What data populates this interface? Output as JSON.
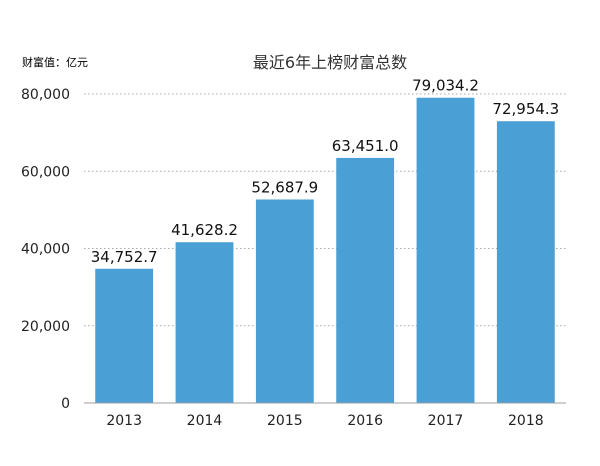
{
  "chart_data": {
    "type": "bar",
    "title": "最近6年上榜财富总数",
    "unit_label": "财富值：亿元",
    "categories": [
      "2013",
      "2014",
      "2015",
      "2016",
      "2017",
      "2018"
    ],
    "values": [
      34752.7,
      41628.2,
      52687.9,
      63451.0,
      79034.2,
      72954.3
    ],
    "value_labels": [
      "34,752.7",
      "41,628.2",
      "52,687.9",
      "63,451.0",
      "79,034.2",
      "72,954.3"
    ],
    "ylim": [
      0,
      80000
    ],
    "yticks": [
      0,
      20000,
      40000,
      60000,
      80000
    ],
    "ytick_labels": [
      "0",
      "20,000",
      "40,000",
      "60,000",
      "80,000"
    ],
    "grid": "dotted horizontal",
    "bar_color": "#4a9fd5"
  }
}
